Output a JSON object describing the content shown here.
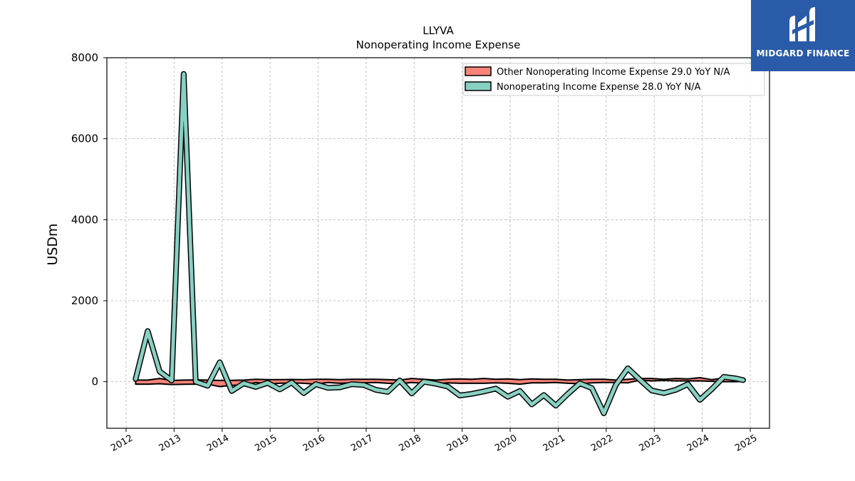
{
  "brand": {
    "name": "MIDGARD FINANCE",
    "background_color": "#2a5ba8"
  },
  "chart_data": {
    "type": "line",
    "title": "LLYVA",
    "subtitle": "Nonoperating Income Expense",
    "ylabel": "USDm",
    "xlabel": "",
    "ylim": [
      -1150,
      8000
    ],
    "xlim": [
      2011.6,
      2025.4
    ],
    "yticks": [
      0,
      2000,
      4000,
      6000,
      8000
    ],
    "xticks": [
      "2012",
      "2013",
      "2014",
      "2015",
      "2016",
      "2017",
      "2018",
      "2019",
      "2020",
      "2021",
      "2022",
      "2023",
      "2024",
      "2025"
    ],
    "grid": true,
    "legend_position": "top-right",
    "series": [
      {
        "name": "Other Nonoperating Income Expense  29.0 YoY N/A",
        "color": "#f88379",
        "band_upper": [
          40,
          40,
          80,
          30,
          40,
          45,
          40,
          30,
          35,
          40,
          60,
          50,
          50,
          55,
          50,
          60,
          60,
          50,
          60,
          60,
          60,
          50,
          40,
          80,
          60,
          40,
          60,
          70,
          60,
          80,
          60,
          70,
          50,
          70,
          60,
          60,
          40,
          50,
          60,
          60,
          40,
          60,
          80,
          80,
          60,
          80,
          70,
          100,
          50,
          90,
          80,
          80
        ],
        "band_lower": [
          -60,
          -60,
          -50,
          -70,
          -65,
          -60,
          -60,
          -120,
          -90,
          -80,
          -20,
          -50,
          -40,
          -30,
          -40,
          -60,
          -20,
          -40,
          -30,
          -30,
          -20,
          -40,
          -50,
          -20,
          -40,
          -50,
          -30,
          -40,
          -40,
          -40,
          -30,
          -40,
          -60,
          -30,
          -30,
          -20,
          -40,
          -50,
          -30,
          -20,
          -20,
          -30,
          40,
          20,
          30,
          20,
          20,
          20,
          10,
          0,
          0,
          10
        ],
        "x": [
          2012.2,
          2012.45,
          2012.7,
          2012.95,
          2013.2,
          2013.45,
          2013.7,
          2013.95,
          2014.2,
          2014.45,
          2014.7,
          2014.95,
          2015.2,
          2015.45,
          2015.7,
          2015.95,
          2016.2,
          2016.45,
          2016.7,
          2016.95,
          2017.2,
          2017.45,
          2017.7,
          2017.95,
          2018.2,
          2018.45,
          2018.7,
          2018.95,
          2019.2,
          2019.45,
          2019.7,
          2019.95,
          2020.2,
          2020.45,
          2020.7,
          2020.95,
          2021.2,
          2021.45,
          2021.7,
          2021.95,
          2022.2,
          2022.45,
          2022.7,
          2022.95,
          2023.2,
          2023.45,
          2023.7,
          2023.95,
          2024.2,
          2024.45,
          2024.7,
          2024.85
        ]
      },
      {
        "name": "Nonoperating Income Expense  28.0 YoY N/A",
        "color": "#88d0c2",
        "x": [
          2012.2,
          2012.45,
          2012.7,
          2012.95,
          2013.2,
          2013.45,
          2013.7,
          2013.95,
          2014.2,
          2014.45,
          2014.7,
          2014.95,
          2015.2,
          2015.45,
          2015.7,
          2015.95,
          2016.2,
          2016.45,
          2016.7,
          2016.95,
          2017.2,
          2017.45,
          2017.7,
          2017.95,
          2018.2,
          2018.45,
          2018.7,
          2018.95,
          2019.2,
          2019.45,
          2019.7,
          2019.95,
          2020.2,
          2020.45,
          2020.7,
          2020.95,
          2021.2,
          2021.45,
          2021.7,
          2021.95,
          2022.2,
          2022.45,
          2022.7,
          2022.95,
          2023.2,
          2023.45,
          2023.7,
          2023.95,
          2024.2,
          2024.45,
          2024.7,
          2024.85
        ],
        "values": [
          70,
          1250,
          250,
          30,
          7600,
          0,
          -100,
          480,
          -230,
          -40,
          -130,
          -30,
          -190,
          -20,
          -280,
          -60,
          -150,
          -140,
          -60,
          -80,
          -200,
          -250,
          30,
          -290,
          0,
          -50,
          -120,
          -340,
          -300,
          -240,
          -170,
          -370,
          -230,
          -560,
          -330,
          -590,
          -300,
          -40,
          -160,
          -780,
          -80,
          330,
          50,
          -220,
          -280,
          -200,
          -60,
          -450,
          -180,
          120,
          80,
          40
        ]
      }
    ]
  }
}
